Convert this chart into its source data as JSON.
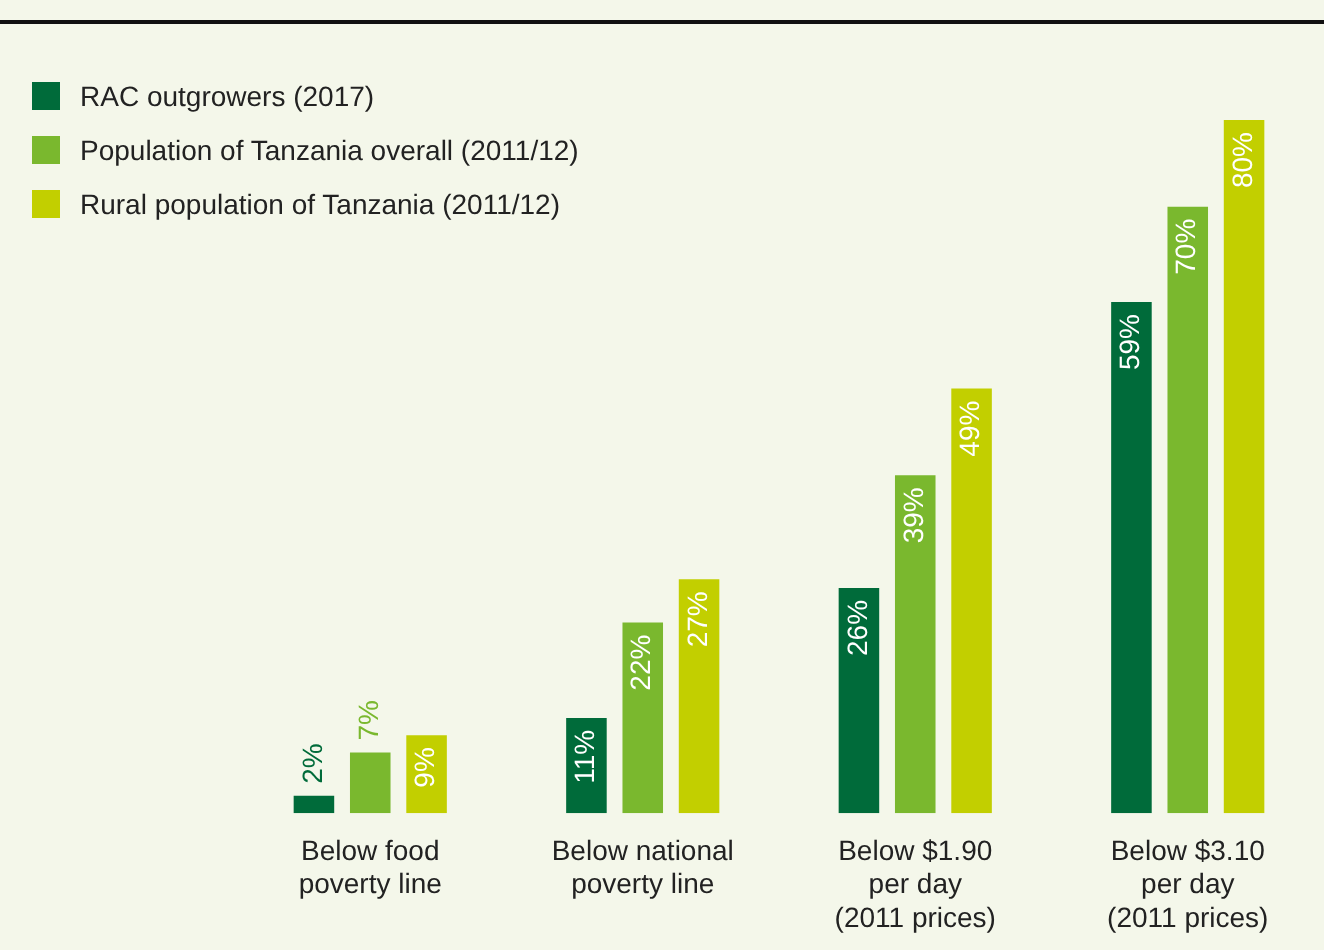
{
  "chart_data": {
    "type": "bar",
    "categories": [
      "Below food\npoverty line",
      "Below national\npoverty line",
      "Below $1.90\nper day\n(2011 prices)",
      "Below $3.10\nper day\n(2011 prices)"
    ],
    "series": [
      {
        "name": "RAC outgrowers (2017)",
        "color": "#006b3a",
        "values": [
          2,
          11,
          26,
          59
        ],
        "value_labels": [
          "2%",
          "11%",
          "26%",
          "59%"
        ]
      },
      {
        "name": "Population of Tanzania overall (2011/12)",
        "color": "#7ab82e",
        "values": [
          7,
          22,
          39,
          70
        ],
        "value_labels": [
          "7%",
          "22%",
          "39%",
          "70%"
        ]
      },
      {
        "name": "Rural population of Tanzania (2011/12)",
        "color": "#c2cf00",
        "values": [
          9,
          27,
          49,
          80
        ],
        "value_labels": [
          "9%",
          "27%",
          "49%",
          "80%"
        ]
      }
    ],
    "grid": false,
    "legend": "top left",
    "tick_labels": "x"
  }
}
